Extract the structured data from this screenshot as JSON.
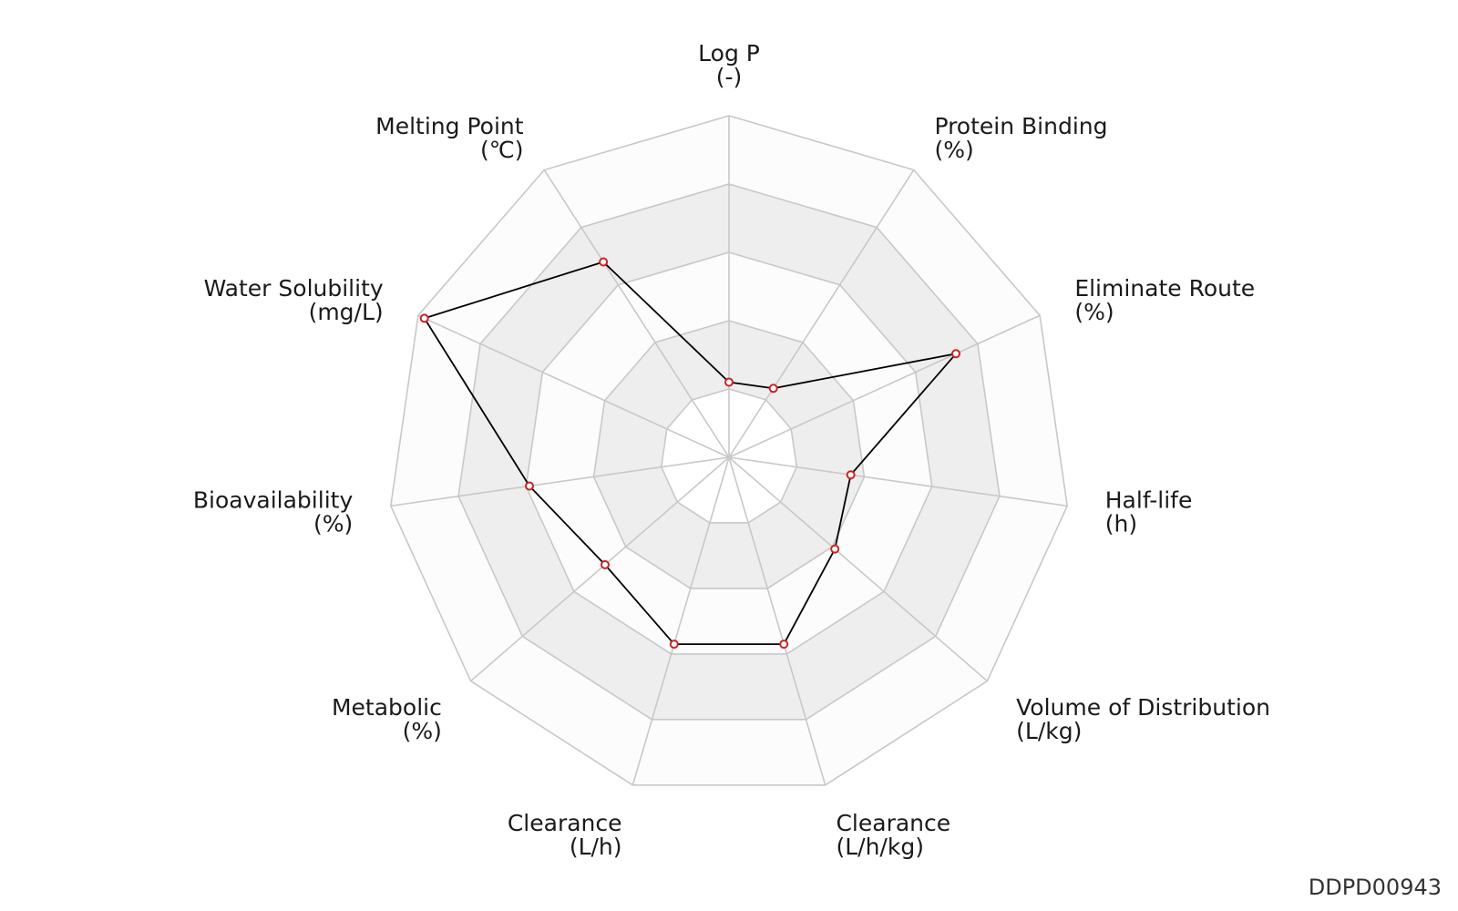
{
  "chart_data": {
    "type": "radar",
    "axes": [
      {
        "name": "Log P",
        "unit": "(-)"
      },
      {
        "name": "Protein Binding",
        "unit": "(%)"
      },
      {
        "name": "Eliminate Route",
        "unit": "(%)"
      },
      {
        "name": "Half-life",
        "unit": "(h)"
      },
      {
        "name": "Volume of Distribution",
        "unit": "(L/kg)"
      },
      {
        "name": "Clearance",
        "unit": "(L/h/kg)"
      },
      {
        "name": "Clearance",
        "unit": "(L/h)"
      },
      {
        "name": "Metabolic",
        "unit": "(%)"
      },
      {
        "name": "Bioavailability",
        "unit": "(%)"
      },
      {
        "name": "Water Solubility",
        "unit": "(mg/L)"
      },
      {
        "name": "Melting Point",
        "unit": "(℃)"
      }
    ],
    "values": [
      0.22,
      0.24,
      0.73,
      0.36,
      0.41,
      0.57,
      0.57,
      0.48,
      0.59,
      0.98,
      0.68
    ],
    "rings": 5,
    "range": [
      0,
      1
    ],
    "grid": true,
    "ring_band_colors": [
      "#ffffff",
      "#eeeeee"
    ],
    "grid_line_color": "#c8c8c8",
    "series_line_color": "#000000",
    "marker_color": "#cc2222"
  },
  "footer": {
    "id": "DDPD00943"
  }
}
